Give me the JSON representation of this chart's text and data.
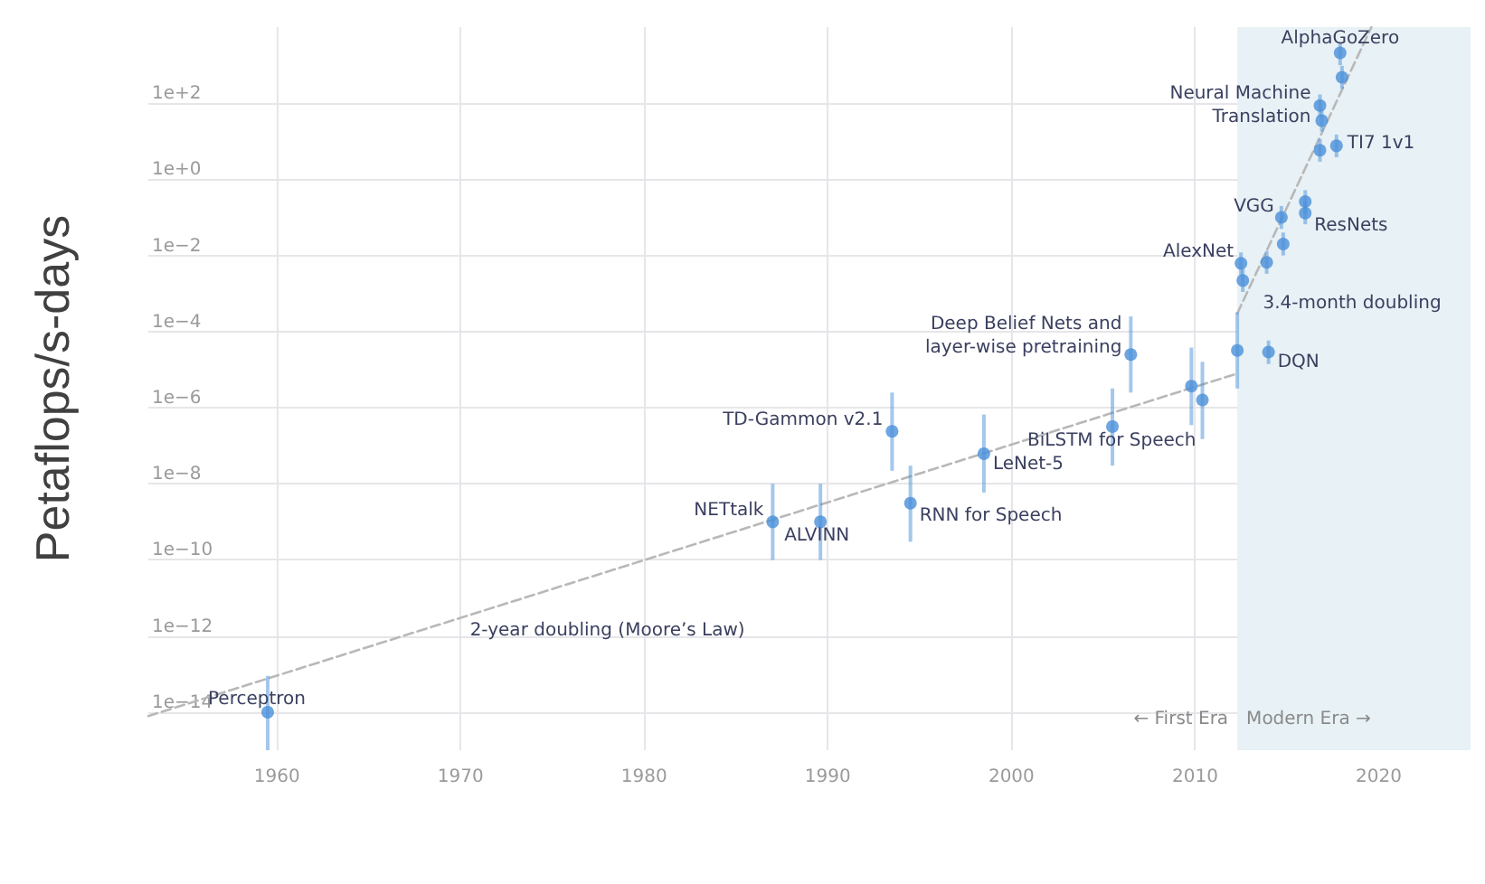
{
  "chart_data": {
    "type": "scatter",
    "ylabel": "Petaflops/s-days",
    "xlim": [
      1953,
      2025
    ],
    "xticks": [
      1960,
      1970,
      1980,
      1990,
      2000,
      2010,
      2020
    ],
    "ylim": [
      1e-15,
      10000.0
    ],
    "yticks": [
      {
        "value": 1e-14,
        "label": "1e−14"
      },
      {
        "value": 1e-12,
        "label": "1e−12"
      },
      {
        "value": 1e-10,
        "label": "1e−10"
      },
      {
        "value": 1e-08,
        "label": "1e−8"
      },
      {
        "value": 1e-06,
        "label": "1e−6"
      },
      {
        "value": 0.0001,
        "label": "1e−4"
      },
      {
        "value": 0.01,
        "label": "1e−2"
      },
      {
        "value": 1,
        "label": "1e+0"
      },
      {
        "value": 100,
        "label": "1e+2"
      }
    ],
    "log": "y",
    "grid": true,
    "marker": "circle",
    "series": [
      {
        "color": "#4a90d9",
        "x": [
          1959.5,
          1987.0,
          1989.6,
          1993.5,
          1994.5,
          1998.5,
          2005.5,
          2006.5,
          2009.8,
          2010.4,
          2012.3,
          2014.0,
          2012.5,
          2012.6,
          2013.9,
          2014.8,
          2014.7,
          2016.0,
          2016.0,
          2016.8,
          2017.7,
          2016.8,
          2016.9,
          2017.9,
          2018.0
        ],
        "values": [
          1e-14,
          1e-09,
          1e-09,
          2.4e-07,
          3.1e-09,
          6.2e-08,
          3.2e-07,
          2.5e-05,
          3.7e-06,
          1.6e-06,
          3.2e-05,
          2.9e-05,
          0.0062,
          0.0022,
          0.0066,
          0.02,
          0.1,
          0.26,
          0.13,
          5.8,
          7.6,
          87,
          35,
          2100,
          480
        ],
        "errors": [
          [
            1e-15,
            9e-14
          ],
          [
            1e-10,
            1e-08
          ],
          [
            1e-10,
            1e-08
          ],
          [
            2.2e-08,
            2.5e-06
          ],
          [
            3e-10,
            3e-08
          ],
          [
            5.9e-09,
            6.6e-07
          ],
          [
            3e-08,
            3.2e-06
          ],
          [
            2.5e-06,
            0.00025
          ],
          [
            3.5e-07,
            3.8e-05
          ],
          [
            1.5e-07,
            1.6e-05
          ],
          [
            3.2e-06,
            0.00032
          ],
          [
            1.4e-05,
            5.8e-05
          ],
          [
            0.003,
            0.012
          ],
          [
            0.0011,
            0.0044
          ],
          [
            0.0033,
            0.013
          ],
          [
            0.01,
            0.04
          ],
          [
            0.05,
            0.2
          ],
          [
            0.13,
            0.52
          ],
          [
            0.066,
            0.26
          ],
          [
            2.9,
            11.6
          ],
          [
            3.8,
            15
          ],
          [
            44,
            170
          ],
          [
            18,
            70
          ],
          [
            1000,
            4000
          ],
          [
            240,
            960
          ]
        ]
      },
      {
        "type": "line",
        "color": "#b8b8b8",
        "line_style": "dashed",
        "marker": "none",
        "x": [
          1953,
          2012.3
        ],
        "values": [
          7.9e-15,
          7.9e-06
        ]
      },
      {
        "type": "line",
        "color": "#b8b8b8",
        "line_style": "dashed",
        "marker": "none",
        "x": [
          2012.3,
          2019.6
        ],
        "values": [
          0.0003,
          10000.0
        ]
      }
    ],
    "bands": [
      {
        "axis": "x",
        "from": 2012.3,
        "to": 2025,
        "color": "#e8f1f5"
      }
    ],
    "annotations": [
      {
        "text": "Perceptron",
        "x": 1959.5,
        "y": 1e-14
      },
      {
        "text": "NETtalk",
        "x": 1987.0,
        "y": 1e-09
      },
      {
        "text": "ALVINN",
        "x": 1989.6,
        "y": 1e-09
      },
      {
        "text": "TD-Gammon v2.1",
        "x": 1993.5,
        "y": 2.4e-07
      },
      {
        "text": "RNN for Speech",
        "x": 1994.5,
        "y": 3.1e-09
      },
      {
        "text": "LeNet-5",
        "x": 1998.5,
        "y": 6.2e-08
      },
      {
        "text": "BiLSTM for Speech",
        "x": 2005.5,
        "y": 3.2e-07
      },
      {
        "text": "Deep Belief Nets and\nlayer-wise pretraining",
        "x": 2006.5,
        "y": 2.5e-05
      },
      {
        "text": "DQN",
        "x": 2014.0,
        "y": 2.9e-05
      },
      {
        "text": "AlexNet",
        "x": 2012.5,
        "y": 0.0062
      },
      {
        "text": "VGG",
        "x": 2014.7,
        "y": 0.1
      },
      {
        "text": "ResNets",
        "x": 2016.0,
        "y": 0.13
      },
      {
        "text": "Neural Machine\nTranslation",
        "x": 2016.8,
        "y": 87
      },
      {
        "text": "TI7 1v1",
        "x": 2017.7,
        "y": 7.6
      },
      {
        "text": "AlphaGoZero",
        "x": 2017.9,
        "y": 2100
      },
      {
        "text": "3.4-month doubling",
        "x": 2013.6,
        "y": 0.0066
      },
      {
        "text": "2-year doubling (Moore’s Law)",
        "x": 1978,
        "y": 5e-11
      },
      "← First Era",
      "Modern Era →"
    ]
  }
}
